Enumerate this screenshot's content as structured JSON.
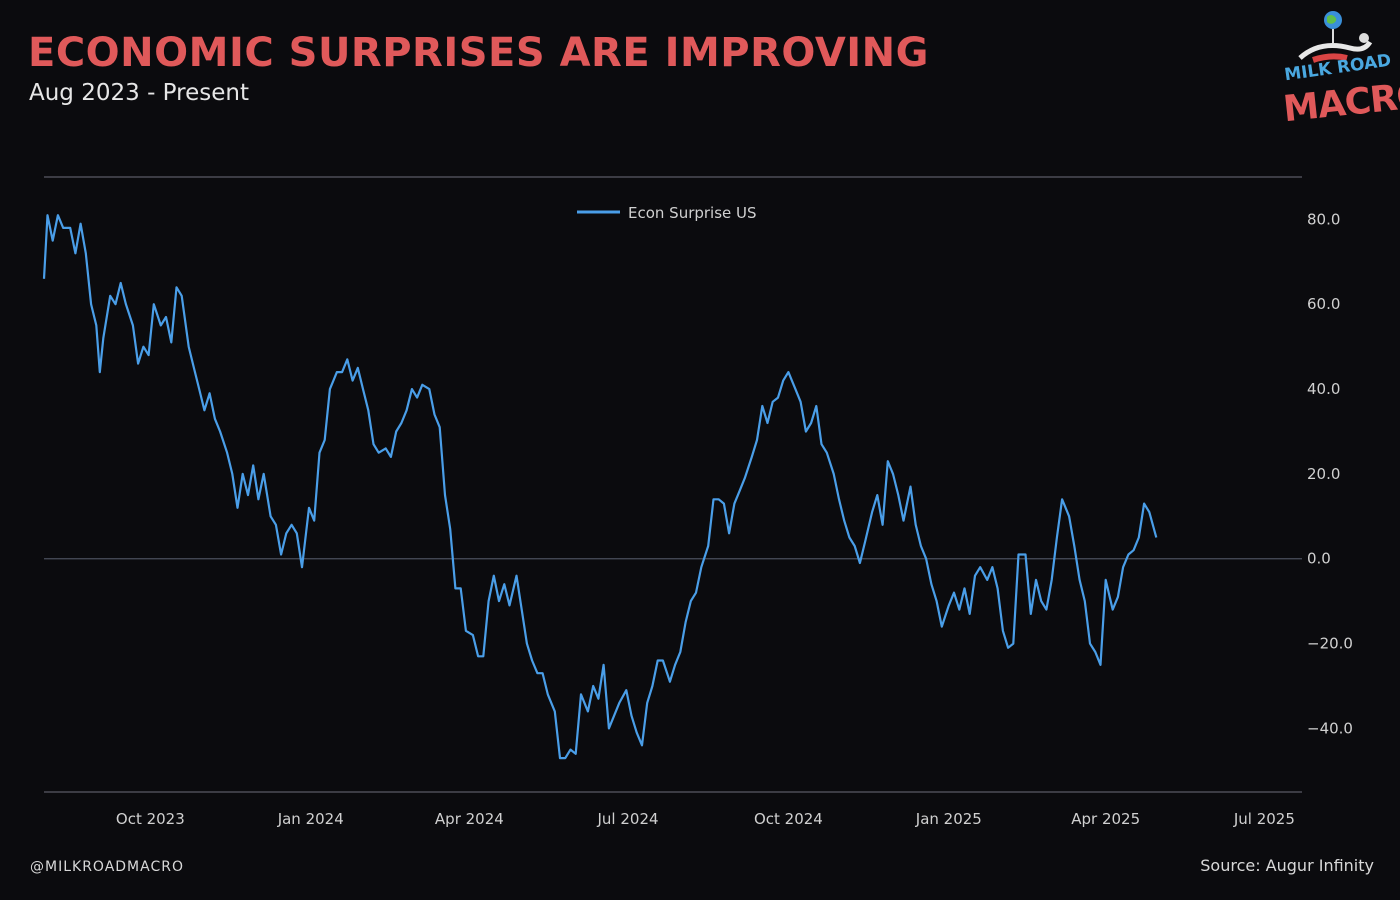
{
  "header": {
    "title": "ECONOMIC SURPRISES ARE IMPROVING",
    "subtitle": "Aug 2023 - Present"
  },
  "logo": {
    "line1": "MILK ROAD",
    "line2": "MACRO",
    "colors": {
      "accent_blue": "#4aa8e0",
      "accent_red": "#e0595a"
    }
  },
  "footer": {
    "handle": "@MILKROADMACRO",
    "source": "Source: Augur Infinity"
  },
  "colors": {
    "background": "#0b0b0e",
    "title": "#e0595a",
    "series": "#4a9ee8",
    "frame": "#5a5a64"
  },
  "chart_data": {
    "type": "line",
    "title": "ECONOMIC SURPRISES ARE IMPROVING",
    "subtitle": "Aug 2023 - Present",
    "xlabel": "",
    "ylabel": "",
    "ylim": [
      -55,
      90
    ],
    "xlim": [
      "2023-08-01",
      "2025-07-18"
    ],
    "y_axis_position": "right",
    "yticks": [
      80,
      60,
      40,
      20,
      0,
      -20,
      -40
    ],
    "ytick_labels": [
      "80.0",
      "60.0",
      "40.0",
      "20.0",
      "0.0",
      "−20.0",
      "−40.0"
    ],
    "xticks": [
      "2023-10-01",
      "2024-01-01",
      "2024-04-01",
      "2024-07-01",
      "2024-10-01",
      "2025-01-01",
      "2025-04-01",
      "2025-07-01"
    ],
    "xtick_labels": [
      "Oct 2023",
      "Jan 2024",
      "Apr 2024",
      "Jul 2024",
      "Oct 2024",
      "Jan 2025",
      "Apr 2025",
      "Jul 2025"
    ],
    "zero_line": true,
    "grid": false,
    "legend_position": "top-center",
    "series": [
      {
        "name": "Econ Surprise US",
        "color": "#4a9ee8",
        "points": [
          [
            "2023-08-01",
            66
          ],
          [
            "2023-08-03",
            81
          ],
          [
            "2023-08-06",
            75
          ],
          [
            "2023-08-09",
            81
          ],
          [
            "2023-08-12",
            78
          ],
          [
            "2023-08-16",
            78
          ],
          [
            "2023-08-19",
            72
          ],
          [
            "2023-08-22",
            79
          ],
          [
            "2023-08-25",
            72
          ],
          [
            "2023-08-28",
            60
          ],
          [
            "2023-08-31",
            55
          ],
          [
            "2023-09-02",
            44
          ],
          [
            "2023-09-04",
            52
          ],
          [
            "2023-09-08",
            62
          ],
          [
            "2023-09-11",
            60
          ],
          [
            "2023-09-14",
            65
          ],
          [
            "2023-09-17",
            60
          ],
          [
            "2023-09-21",
            55
          ],
          [
            "2023-09-24",
            46
          ],
          [
            "2023-09-27",
            50
          ],
          [
            "2023-09-30",
            48
          ],
          [
            "2023-10-03",
            60
          ],
          [
            "2023-10-07",
            55
          ],
          [
            "2023-10-10",
            57
          ],
          [
            "2023-10-13",
            51
          ],
          [
            "2023-10-16",
            64
          ],
          [
            "2023-10-19",
            62
          ],
          [
            "2023-10-23",
            50
          ],
          [
            "2023-10-26",
            45
          ],
          [
            "2023-10-29",
            40
          ],
          [
            "2023-11-01",
            35
          ],
          [
            "2023-11-04",
            39
          ],
          [
            "2023-11-07",
            33
          ],
          [
            "2023-11-10",
            30
          ],
          [
            "2023-11-14",
            25
          ],
          [
            "2023-11-17",
            20
          ],
          [
            "2023-11-20",
            12
          ],
          [
            "2023-11-23",
            20
          ],
          [
            "2023-11-26",
            15
          ],
          [
            "2023-11-29",
            22
          ],
          [
            "2023-12-02",
            14
          ],
          [
            "2023-12-05",
            20
          ],
          [
            "2023-12-09",
            10
          ],
          [
            "2023-12-12",
            8
          ],
          [
            "2023-12-15",
            1
          ],
          [
            "2023-12-18",
            6
          ],
          [
            "2023-12-21",
            8
          ],
          [
            "2023-12-24",
            6
          ],
          [
            "2023-12-27",
            -2
          ],
          [
            "2023-12-31",
            12
          ],
          [
            "2024-01-03",
            9
          ],
          [
            "2024-01-06",
            25
          ],
          [
            "2024-01-09",
            28
          ],
          [
            "2024-01-12",
            40
          ],
          [
            "2024-01-16",
            44
          ],
          [
            "2024-01-19",
            44
          ],
          [
            "2024-01-22",
            47
          ],
          [
            "2024-01-25",
            42
          ],
          [
            "2024-01-28",
            45
          ],
          [
            "2024-01-31",
            40
          ],
          [
            "2024-02-03",
            35
          ],
          [
            "2024-02-06",
            27
          ],
          [
            "2024-02-09",
            25
          ],
          [
            "2024-02-13",
            26
          ],
          [
            "2024-02-16",
            24
          ],
          [
            "2024-02-19",
            30
          ],
          [
            "2024-02-22",
            32
          ],
          [
            "2024-02-25",
            35
          ],
          [
            "2024-02-28",
            40
          ],
          [
            "2024-03-02",
            38
          ],
          [
            "2024-03-05",
            41
          ],
          [
            "2024-03-09",
            40
          ],
          [
            "2024-03-12",
            34
          ],
          [
            "2024-03-15",
            31
          ],
          [
            "2024-03-18",
            15
          ],
          [
            "2024-03-21",
            7
          ],
          [
            "2024-03-24",
            -7
          ],
          [
            "2024-03-27",
            -7
          ],
          [
            "2024-03-30",
            -17
          ],
          [
            "2024-04-03",
            -18
          ],
          [
            "2024-04-06",
            -23
          ],
          [
            "2024-04-09",
            -23
          ],
          [
            "2024-04-12",
            -10
          ],
          [
            "2024-04-15",
            -4
          ],
          [
            "2024-04-18",
            -10
          ],
          [
            "2024-04-21",
            -6
          ],
          [
            "2024-04-24",
            -11
          ],
          [
            "2024-04-28",
            -4
          ],
          [
            "2024-05-01",
            -12
          ],
          [
            "2024-05-04",
            -20
          ],
          [
            "2024-05-07",
            -24
          ],
          [
            "2024-05-10",
            -27
          ],
          [
            "2024-05-13",
            -27
          ],
          [
            "2024-05-16",
            -32
          ],
          [
            "2024-05-20",
            -36
          ],
          [
            "2024-05-23",
            -47
          ],
          [
            "2024-05-26",
            -47
          ],
          [
            "2024-05-29",
            -45
          ],
          [
            "2024-06-01",
            -46
          ],
          [
            "2024-06-04",
            -32
          ],
          [
            "2024-06-08",
            -36
          ],
          [
            "2024-06-11",
            -30
          ],
          [
            "2024-06-14",
            -33
          ],
          [
            "2024-06-17",
            -25
          ],
          [
            "2024-06-20",
            -40
          ],
          [
            "2024-06-23",
            -37
          ],
          [
            "2024-06-26",
            -34
          ],
          [
            "2024-06-30",
            -31
          ],
          [
            "2024-07-03",
            -37
          ],
          [
            "2024-07-06",
            -41
          ],
          [
            "2024-07-09",
            -44
          ],
          [
            "2024-07-12",
            -34
          ],
          [
            "2024-07-15",
            -30
          ],
          [
            "2024-07-18",
            -24
          ],
          [
            "2024-07-21",
            -24
          ],
          [
            "2024-07-25",
            -29
          ],
          [
            "2024-07-28",
            -25
          ],
          [
            "2024-07-31",
            -22
          ],
          [
            "2024-08-03",
            -15
          ],
          [
            "2024-08-06",
            -10
          ],
          [
            "2024-08-09",
            -8
          ],
          [
            "2024-08-12",
            -2
          ],
          [
            "2024-08-16",
            3
          ],
          [
            "2024-08-19",
            14
          ],
          [
            "2024-08-22",
            14
          ],
          [
            "2024-08-25",
            13
          ],
          [
            "2024-08-28",
            6
          ],
          [
            "2024-08-31",
            13
          ],
          [
            "2024-09-03",
            16
          ],
          [
            "2024-09-06",
            19
          ],
          [
            "2024-09-10",
            24
          ],
          [
            "2024-09-13",
            28
          ],
          [
            "2024-09-16",
            36
          ],
          [
            "2024-09-19",
            32
          ],
          [
            "2024-09-22",
            37
          ],
          [
            "2024-09-25",
            38
          ],
          [
            "2024-09-28",
            42
          ],
          [
            "2024-10-01",
            44
          ],
          [
            "2024-10-05",
            40
          ],
          [
            "2024-10-08",
            37
          ],
          [
            "2024-10-11",
            30
          ],
          [
            "2024-10-14",
            32
          ],
          [
            "2024-10-17",
            36
          ],
          [
            "2024-10-20",
            27
          ],
          [
            "2024-10-23",
            25
          ],
          [
            "2024-10-27",
            20
          ],
          [
            "2024-10-30",
            14
          ],
          [
            "2024-11-02",
            9
          ],
          [
            "2024-11-05",
            5
          ],
          [
            "2024-11-08",
            3
          ],
          [
            "2024-11-11",
            -1
          ],
          [
            "2024-11-14",
            4
          ],
          [
            "2024-11-18",
            11
          ],
          [
            "2024-11-21",
            15
          ],
          [
            "2024-11-24",
            8
          ],
          [
            "2024-11-27",
            23
          ],
          [
            "2024-11-30",
            20
          ],
          [
            "2024-12-03",
            15
          ],
          [
            "2024-12-06",
            9
          ],
          [
            "2024-12-10",
            17
          ],
          [
            "2024-12-13",
            8
          ],
          [
            "2024-12-16",
            3
          ],
          [
            "2024-12-19",
            0
          ],
          [
            "2024-12-22",
            -6
          ],
          [
            "2024-12-25",
            -10
          ],
          [
            "2024-12-28",
            -16
          ],
          [
            "2025-01-01",
            -11
          ],
          [
            "2025-01-04",
            -8
          ],
          [
            "2025-01-07",
            -12
          ],
          [
            "2025-01-10",
            -7
          ],
          [
            "2025-01-13",
            -13
          ],
          [
            "2025-01-16",
            -4
          ],
          [
            "2025-01-19",
            -2
          ],
          [
            "2025-01-23",
            -5
          ],
          [
            "2025-01-26",
            -2
          ],
          [
            "2025-01-29",
            -7
          ],
          [
            "2025-02-01",
            -17
          ],
          [
            "2025-02-04",
            -21
          ],
          [
            "2025-02-07",
            -20
          ],
          [
            "2025-02-10",
            1
          ],
          [
            "2025-02-14",
            1
          ],
          [
            "2025-02-17",
            -13
          ],
          [
            "2025-02-20",
            -5
          ],
          [
            "2025-02-23",
            -10
          ],
          [
            "2025-02-26",
            -12
          ],
          [
            "2025-03-01",
            -5
          ],
          [
            "2025-03-04",
            5
          ],
          [
            "2025-03-07",
            14
          ],
          [
            "2025-03-11",
            10
          ],
          [
            "2025-03-14",
            3
          ],
          [
            "2025-03-17",
            -5
          ],
          [
            "2025-03-20",
            -10
          ],
          [
            "2025-03-23",
            -20
          ],
          [
            "2025-03-26",
            -22
          ],
          [
            "2025-03-29",
            -25
          ],
          [
            "2025-04-01",
            -5
          ],
          [
            "2025-04-05",
            -12
          ],
          [
            "2025-04-08",
            -9
          ],
          [
            "2025-04-11",
            -2
          ],
          [
            "2025-04-14",
            1
          ],
          [
            "2025-04-17",
            2
          ],
          [
            "2025-04-20",
            5
          ],
          [
            "2025-04-23",
            13
          ],
          [
            "2025-04-26",
            11
          ],
          [
            "2025-04-30",
            5
          ]
        ]
      }
    ]
  }
}
